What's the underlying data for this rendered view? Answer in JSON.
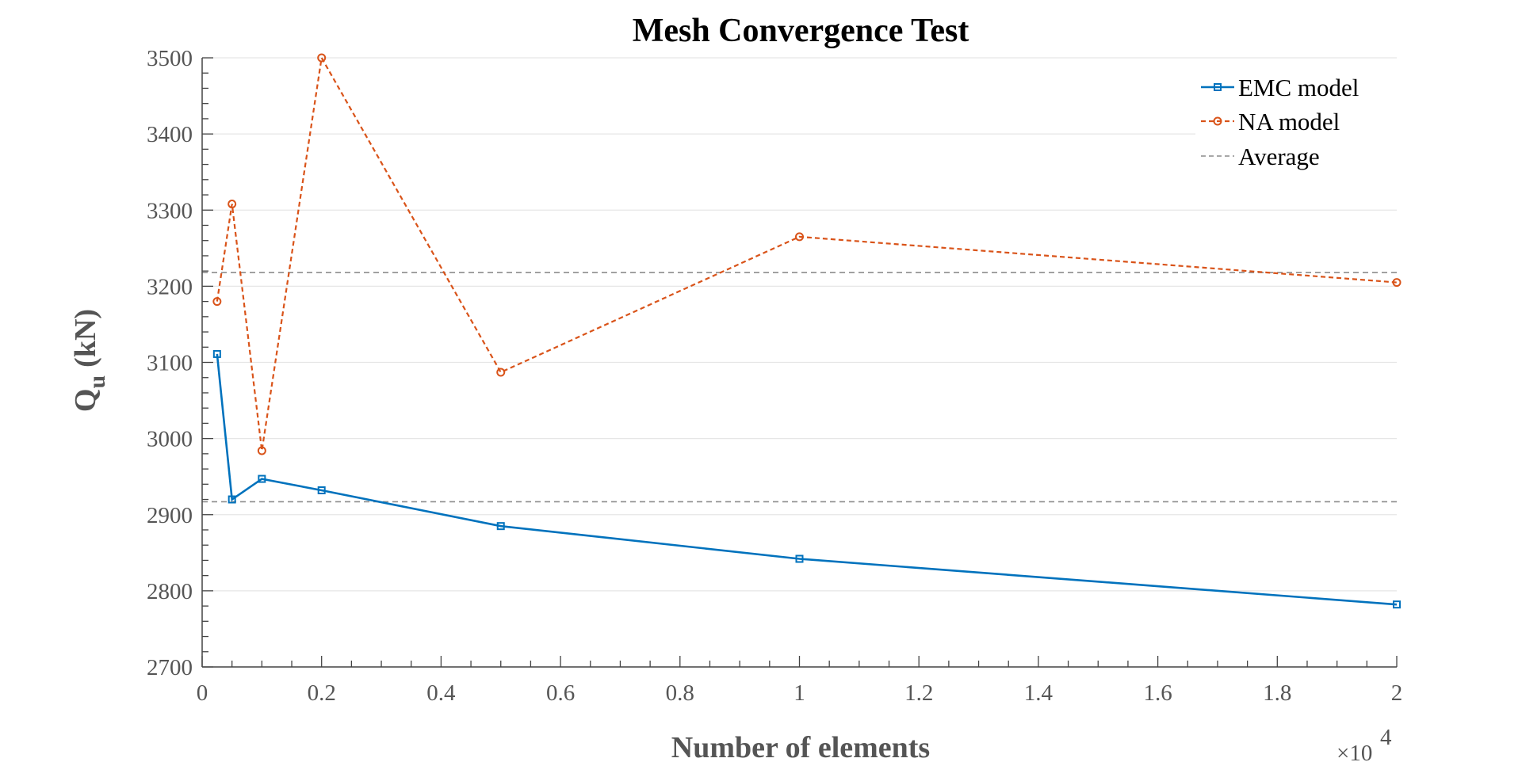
{
  "chart_data": {
    "type": "line",
    "title": "Mesh Convergence Test",
    "xlabel": "Number of elements",
    "ylabel_main": "Q",
    "ylabel_sub": "u",
    "ylabel_unit": "(kN)",
    "x_exponent_base": "×10",
    "x_exponent_power": "4",
    "xlim": [
      0,
      20000
    ],
    "ylim": [
      2700,
      3500
    ],
    "x_ticks": [
      0,
      2000,
      4000,
      6000,
      8000,
      10000,
      12000,
      14000,
      16000,
      18000,
      20000
    ],
    "x_tick_labels": [
      "0",
      "0.2",
      "0.4",
      "0.6",
      "0.8",
      "1",
      "1.2",
      "1.4",
      "1.6",
      "1.8",
      "2"
    ],
    "y_ticks": [
      2700,
      2800,
      2900,
      3000,
      3100,
      3200,
      3300,
      3400,
      3500
    ],
    "y_tick_labels": [
      "2700",
      "2800",
      "2900",
      "3000",
      "3100",
      "3200",
      "3300",
      "3400",
      "3500"
    ],
    "grid": "horizontal",
    "legend_position": "top-right",
    "series": [
      {
        "name": "EMC model",
        "color": "#0072BD",
        "style": "solid",
        "marker": "square",
        "x": [
          250,
          500,
          1000,
          2000,
          5000,
          10000,
          20000
        ],
        "y": [
          3111,
          2920,
          2947,
          2932,
          2885,
          2842,
          2782
        ]
      },
      {
        "name": "NA model",
        "color": "#D95319",
        "style": "dashed",
        "marker": "circle",
        "x": [
          250,
          500,
          1000,
          2000,
          5000,
          10000,
          20000
        ],
        "y": [
          3180,
          3308,
          2984,
          3500,
          3087,
          3265,
          3205
        ]
      }
    ],
    "reference_lines": [
      {
        "name": "Average",
        "color": "#8c8c8c",
        "style": "dashed",
        "y": 3218,
        "x_range": [
          0,
          20000
        ]
      },
      {
        "name": "Average",
        "color": "#8c8c8c",
        "style": "dashed",
        "y": 2917,
        "x_range": [
          0,
          20000
        ]
      }
    ],
    "legend": [
      "EMC model",
      "NA model",
      "Average"
    ]
  }
}
